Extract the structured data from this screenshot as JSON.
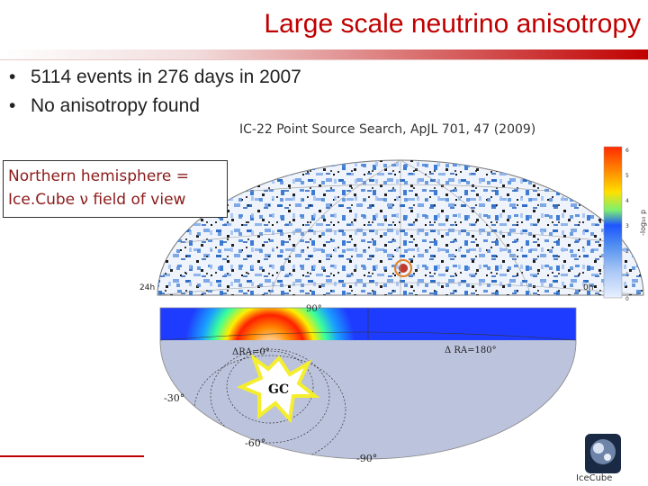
{
  "slide": {
    "title": "Large scale neutrino anisotropy",
    "bullets": [
      "5114 events in 276 days in 2007",
      "No anisotropy found"
    ],
    "callout": {
      "line1": "Northern hemisphere =",
      "line2": "Ice.Cube ν field of view"
    }
  },
  "figure": {
    "caption": "IC-22 Point Source Search,  ApJL 701, 47 (2009)",
    "axis_left": "24h",
    "axis_right": "0h",
    "dec_90": "90°",
    "dec_-30": "-30°",
    "dec_-60": "-60°",
    "dec_-90": "-90°",
    "ra_0": "ΔRA=0°",
    "ra_180": "Δ RA=180°",
    "gc": "GC",
    "colorbar_label": "-log₁₀ p",
    "colorbar_ticks": [
      "6",
      "5",
      "4",
      "3",
      "2",
      "1",
      "0"
    ]
  },
  "logo": {
    "text": "IceCube"
  },
  "colors": {
    "title": "#c00000",
    "callout_text": "#8b1a1a",
    "sky_lower": "#bcc3dc",
    "burst": "#f4ee2e"
  }
}
